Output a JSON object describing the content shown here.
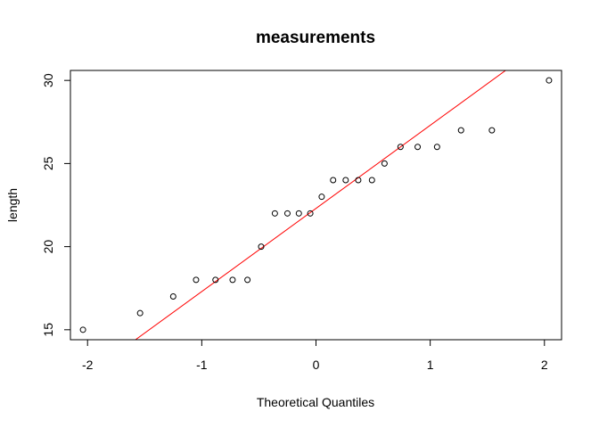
{
  "chart_data": {
    "type": "scatter",
    "subtype": "qq-plot",
    "title": "measurements",
    "xlabel": "Theoretical Quantiles",
    "ylabel": "length",
    "xlim": [
      -2.15,
      2.15
    ],
    "ylim": [
      14.4,
      30.6
    ],
    "xticks": [
      -2,
      -1,
      0,
      1,
      2
    ],
    "xtick_labels": [
      "-2",
      "-1",
      "0",
      "1",
      "2"
    ],
    "yticks": [
      15,
      20,
      25,
      30
    ],
    "ytick_labels": [
      "15",
      "20",
      "25",
      "30"
    ],
    "grid": false,
    "points": {
      "x": [
        -2.04,
        -1.54,
        -1.25,
        -1.05,
        -0.88,
        -0.73,
        -0.6,
        -0.48,
        -0.36,
        -0.25,
        -0.15,
        -0.05,
        0.05,
        0.15,
        0.26,
        0.37,
        0.49,
        0.6,
        0.74,
        0.89,
        1.06,
        1.27,
        1.54,
        2.04
      ],
      "y": [
        15,
        16,
        17,
        18,
        18,
        18,
        18,
        20,
        22,
        22,
        22,
        22,
        23,
        24,
        24,
        24,
        24,
        25,
        26,
        26,
        26,
        27,
        27,
        30
      ],
      "marker": "open-circle"
    },
    "reference_line": {
      "color": "#ff0000",
      "intercept": 22.3,
      "slope": 5.0
    }
  }
}
